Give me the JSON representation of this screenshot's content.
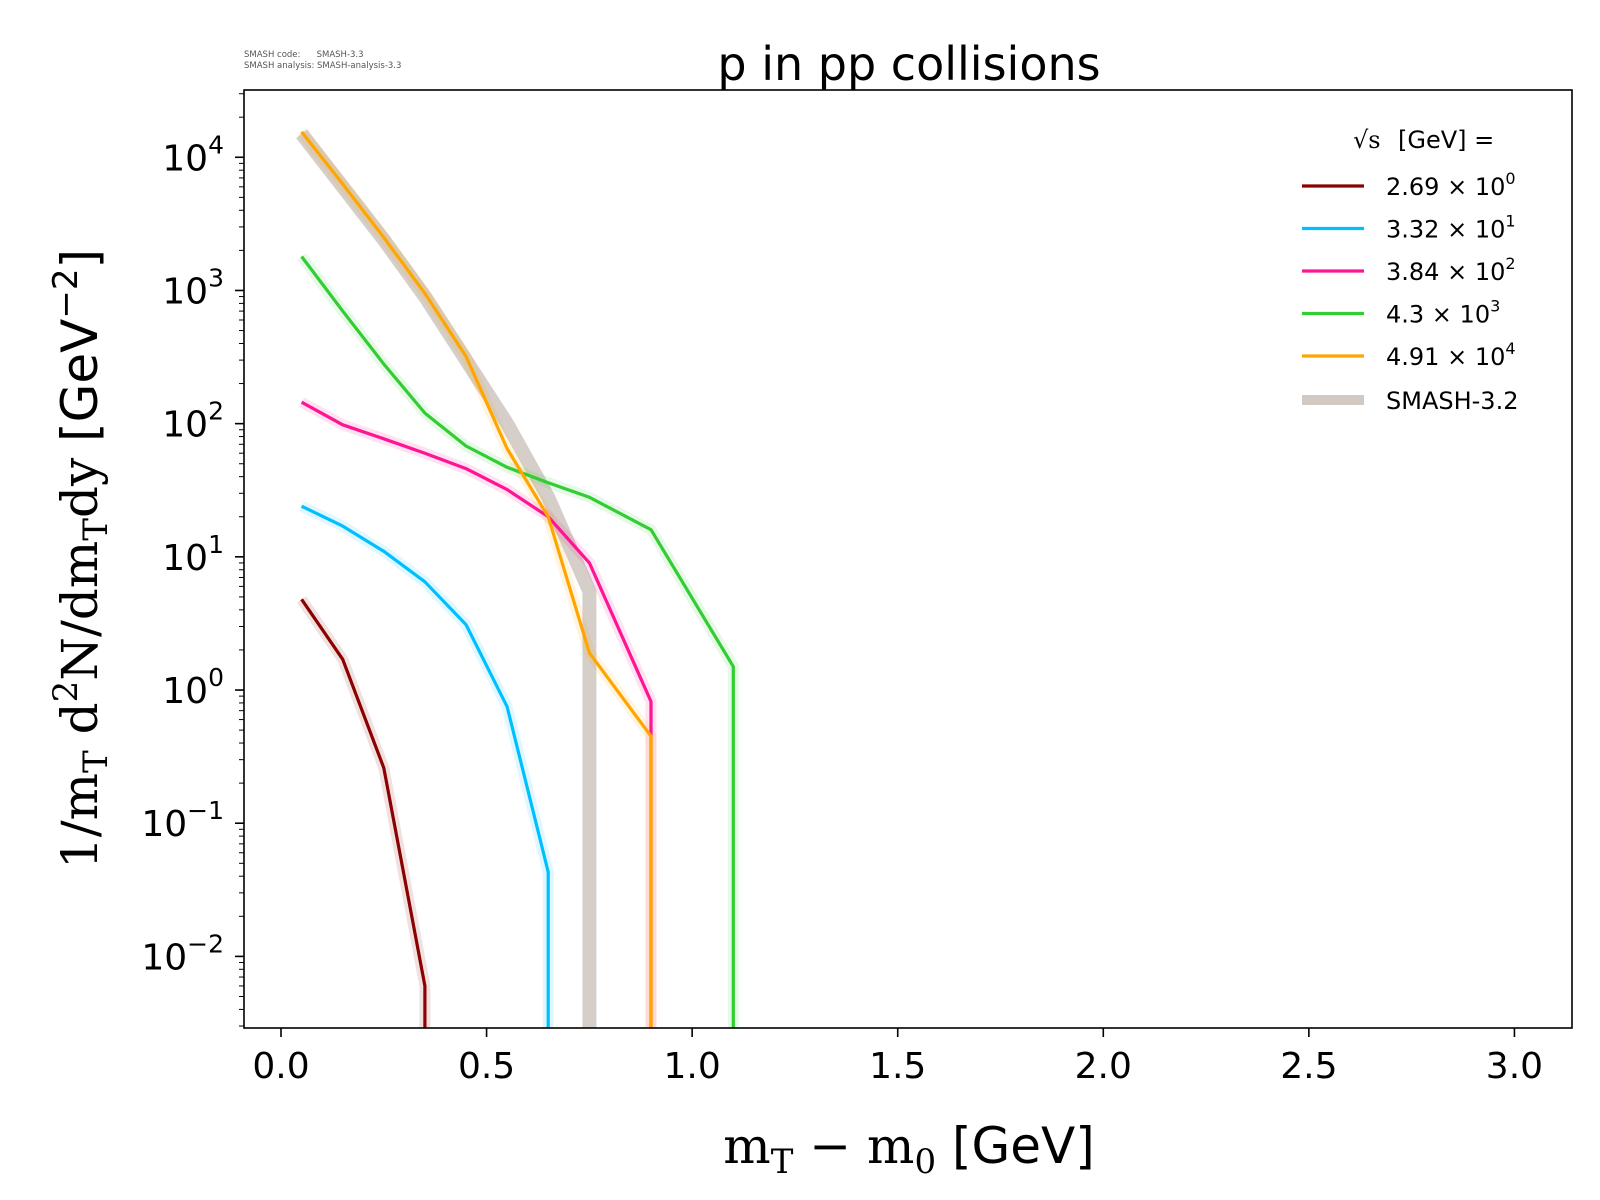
{
  "meta": {
    "code_line": "SMASH code:      SMASH-3.3",
    "analysis_line": "SMASH analysis: SMASH-analysis-3.3"
  },
  "chart_data": {
    "type": "line",
    "title": "p in pp collisions",
    "xlabel": "m_T − m_0 [GeV]",
    "xlabel_parts": {
      "main": "m",
      "sub": "T",
      "minus": " − m",
      "sub2": "0",
      "unit": " [GeV]"
    },
    "ylabel": "1/m_T d²N/dm_T dy [GeV⁻²]",
    "ylabel_parts": {
      "a": "1/m",
      "a_sub": "T",
      "b": " d",
      "b_sup": "2",
      "c": "N/dm",
      "c_sub": "T",
      "d": "dy",
      "unit": " [GeV",
      "unit_sup": "−2",
      "unit_end": "]"
    },
    "xscale": "linear",
    "yscale": "log",
    "xlim": [
      -0.09,
      3.14
    ],
    "ylim": [
      0.0029,
      32000
    ],
    "xticks": [
      0.0,
      0.5,
      1.0,
      1.5,
      2.0,
      2.5,
      3.0
    ],
    "xtick_labels": [
      "0.0",
      "0.5",
      "1.0",
      "1.5",
      "2.0",
      "2.5",
      "3.0"
    ],
    "yticks_exp": [
      -2,
      -1,
      0,
      1,
      2,
      3,
      4
    ],
    "ytick_base": "10",
    "ytick_labels_exp": [
      "−2",
      "−1",
      "0",
      "1",
      "2",
      "3",
      "4"
    ],
    "legend": {
      "title": "[GeV] =",
      "title_symbol": "√s",
      "position": "top-right",
      "entries": [
        {
          "mant": "2.69",
          "exp": "0"
        },
        {
          "mant": "3.32",
          "exp": "1"
        },
        {
          "mant": "3.84",
          "exp": "2"
        },
        {
          "mant": "4.3",
          "exp": "3"
        },
        {
          "mant": "4.91",
          "exp": "4"
        }
      ],
      "times_symbol": "×",
      "times_base": "10",
      "reference_label": "SMASH-3.2"
    },
    "series": [
      {
        "name": "2.69 × 10^0 GeV",
        "color": "#8b0000",
        "x": [
          0.05,
          0.15,
          0.25,
          0.35,
          0.35
        ],
        "y": [
          4.8,
          1.7,
          0.26,
          0.006,
          0.0029
        ]
      },
      {
        "name": "3.32 × 10^1 GeV",
        "color": "#00bfff",
        "x": [
          0.05,
          0.15,
          0.25,
          0.35,
          0.45,
          0.55,
          0.65,
          0.65
        ],
        "y": [
          24,
          17,
          11,
          6.5,
          3.1,
          0.75,
          0.043,
          0.0029
        ]
      },
      {
        "name": "3.84 × 10^2 GeV",
        "color": "#ff1493",
        "x": [
          0.05,
          0.15,
          0.25,
          0.35,
          0.45,
          0.55,
          0.65,
          0.75,
          0.9,
          0.9
        ],
        "y": [
          145,
          98,
          77,
          60,
          46,
          32,
          20,
          9,
          0.82,
          0.0029
        ]
      },
      {
        "name": "4.3 × 10^3 GeV",
        "color": "#32cd32",
        "x": [
          0.05,
          0.15,
          0.25,
          0.35,
          0.45,
          0.55,
          0.65,
          0.75,
          0.9,
          1.1,
          1.1
        ],
        "y": [
          1800,
          700,
          280,
          120,
          68,
          47,
          36,
          28,
          16,
          1.5,
          0.0029
        ]
      },
      {
        "name": "4.91 × 10^4 GeV",
        "color": "#ffa500",
        "x": [
          0.05,
          0.15,
          0.25,
          0.35,
          0.45,
          0.55,
          0.65,
          0.75,
          0.9,
          0.9
        ],
        "y": [
          15500,
          6300,
          2500,
          950,
          320,
          65,
          20,
          1.9,
          0.45,
          0.0029
        ]
      },
      {
        "name": "SMASH-3.2",
        "color": "#d2c9c2",
        "reference": true,
        "x": [
          0.05,
          0.15,
          0.25,
          0.35,
          0.45,
          0.55,
          0.65,
          0.75,
          0.75
        ],
        "y": [
          15000,
          6000,
          2400,
          900,
          300,
          100,
          28,
          5.5,
          0.0029
        ]
      }
    ]
  }
}
